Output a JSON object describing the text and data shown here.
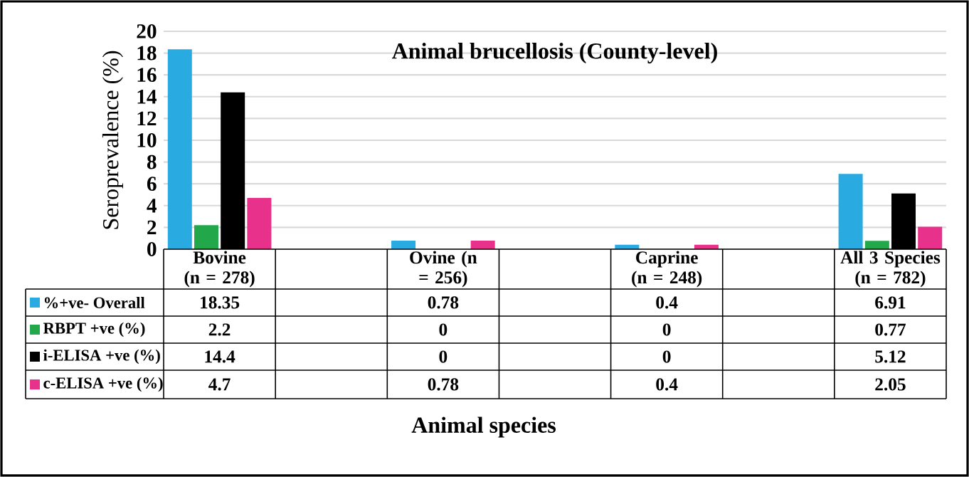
{
  "chart_data": {
    "type": "bar",
    "title": "Animal brucellosis (County-level)",
    "annotations": [
      "Animal species"
    ],
    "ylabel": "Seroprevalence (%)",
    "categories": [
      "Bovine (n = 278)",
      null,
      "Ovine (n = 256)",
      null,
      "Caprine (n = 248)",
      null,
      "All 3 Species (n = 782)"
    ],
    "series": [
      {
        "name": "%+ve- Overall",
        "color": "#29abe2",
        "values": [
          18.35,
          null,
          0.78,
          null,
          0.4,
          null,
          6.91
        ]
      },
      {
        "name": "RBPT +ve (%)",
        "color": "#22a84a",
        "values": [
          2.2,
          null,
          0,
          null,
          0,
          null,
          0.77
        ]
      },
      {
        "name": "i-ELISA +ve (%)",
        "color": "#000000",
        "values": [
          14.4,
          null,
          0,
          null,
          0,
          null,
          5.12
        ]
      },
      {
        "name": "c-ELISA +ve (%)",
        "color": "#e8318a",
        "values": [
          4.7,
          null,
          0.78,
          null,
          0.4,
          null,
          2.05
        ]
      }
    ],
    "ylim": [
      0,
      20
    ],
    "yticks": [
      0,
      2,
      4,
      6,
      8,
      10,
      12,
      14,
      16,
      18,
      20
    ],
    "grid": "y",
    "legend": "bottom",
    "data_labels": true
  }
}
